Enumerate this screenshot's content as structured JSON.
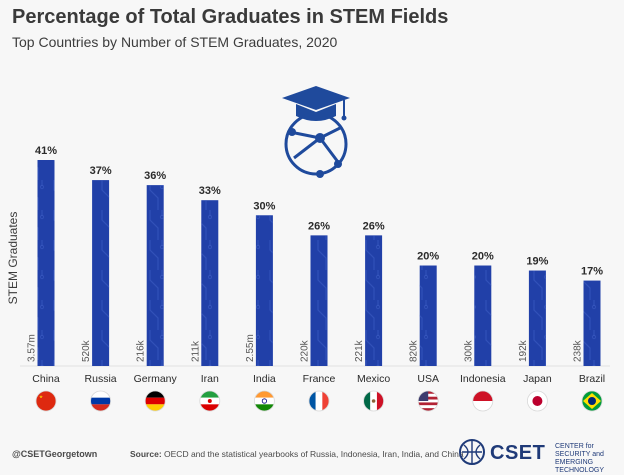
{
  "header": {
    "title": "Percentage of Total Graduates in STEM Fields",
    "subtitle": "Top Countries by Number of STEM Graduates, 2020"
  },
  "chart_data": {
    "type": "bar",
    "title": "Percentage of Total Graduates in STEM Fields",
    "subtitle": "Top Countries by Number of STEM Graduates, 2020",
    "ylabel": "STEM Graduates",
    "xlabel": "",
    "ylim": [
      0,
      41
    ],
    "grid": false,
    "categories": [
      "China",
      "Russia",
      "Germany",
      "Iran",
      "India",
      "France",
      "Mexico",
      "USA",
      "Indonesia",
      "Japan",
      "Brazil"
    ],
    "values": [
      41,
      37,
      36,
      33,
      30,
      26,
      26,
      20,
      20,
      19,
      17
    ],
    "value_labels": [
      "41%",
      "37%",
      "36%",
      "33%",
      "30%",
      "26%",
      "26%",
      "20%",
      "20%",
      "19%",
      "17%"
    ],
    "graduate_counts": [
      "3.57m",
      "520k",
      "216k",
      "211k",
      "2.55m",
      "220k",
      "221k",
      "820k",
      "300k",
      "192k",
      "238k"
    ],
    "flags": [
      "china-flag",
      "russia-flag",
      "germany-flag",
      "iran-flag",
      "india-flag",
      "france-flag",
      "mexico-flag",
      "usa-flag",
      "indonesia-flag",
      "japan-flag",
      "brazil-flag"
    ],
    "bar_color": "#2140a8"
  },
  "footer": {
    "handle": "@CSETGeorgetown",
    "source_label": "Source:",
    "source_text": "OECD and the statistical yearbooks of Russia, Indonesia, Iran, India, and China",
    "logo_name": "CSET",
    "logo_tag_1": "CENTER for SECURITY and",
    "logo_tag_2": "EMERGING TECHNOLOGY"
  },
  "icons": {
    "graphic": "graduation-cap-globe-icon",
    "logo": "cset-logo-icon"
  }
}
